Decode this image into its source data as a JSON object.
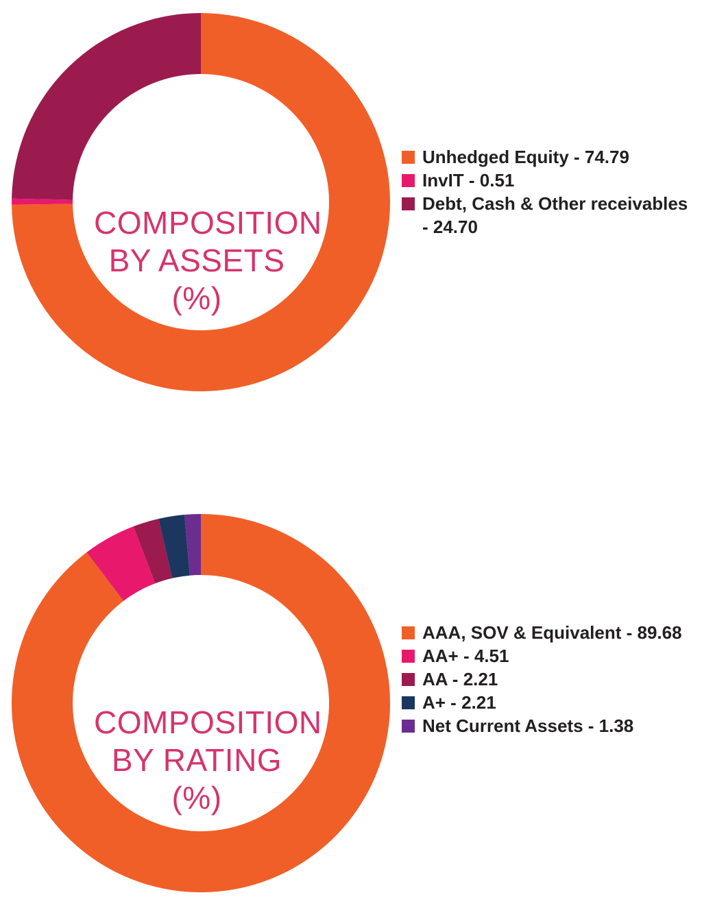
{
  "chart_data": [
    {
      "type": "pie",
      "title": "COMPOSITION BY ASSETS (%)",
      "center_lines": [
        "COMPOSITION",
        "BY ASSETS",
        "(%)"
      ],
      "legend_placement": "right",
      "categories": [
        "Unhedged Equity",
        "InvIT",
        "Debt, Cash & Other receivables"
      ],
      "values": [
        74.79,
        0.51,
        24.7
      ],
      "colors": [
        "#f05f28",
        "#e8196d",
        "#9b1b4f"
      ],
      "legend_labels": [
        "Unhedged Equity - 74.79",
        "InvIT - 0.51",
        "Debt, Cash & Other receivables - 24.70"
      ]
    },
    {
      "type": "pie",
      "title": "COMPOSITION BY RATING (%)",
      "center_lines": [
        "COMPOSITION",
        "BY RATING",
        "(%)"
      ],
      "legend_placement": "right",
      "categories": [
        "AAA, SOV & Equivalent",
        "AA+",
        "AA",
        "A+",
        "Net Current Assets"
      ],
      "values": [
        89.68,
        4.51,
        2.21,
        2.21,
        1.38
      ],
      "colors": [
        "#f05f28",
        "#e8196d",
        "#9b1b4f",
        "#1b3760",
        "#6c2d91"
      ],
      "legend_labels": [
        "AAA, SOV & Equivalent - 89.68",
        "AA+ - 4.51",
        "AA - 2.21",
        "A+ - 2.21",
        "Net Current Assets - 1.38"
      ]
    }
  ]
}
